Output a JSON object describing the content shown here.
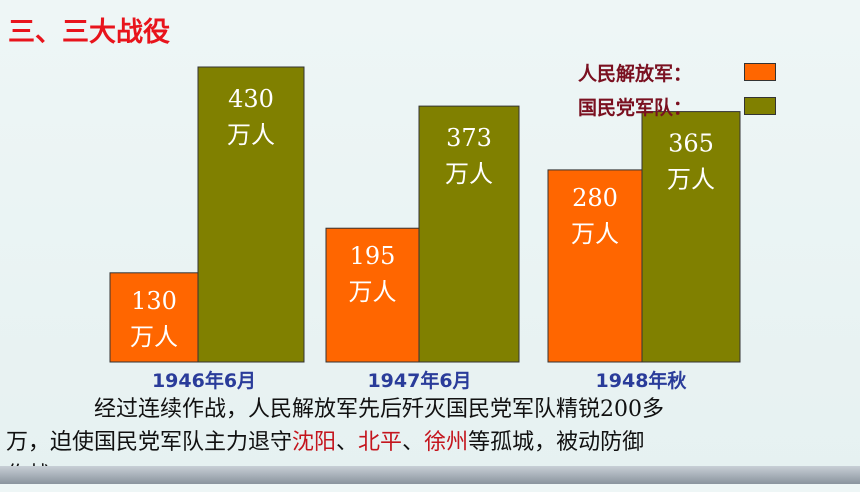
{
  "page": {
    "title": "三、三大战役",
    "paragraph": {
      "line1": "经过连续作战，人民解放军先后歼灭国民党军队精锐200多",
      "line2_a": "万，迫使国民党军队主力退守",
      "city1": "沈阳",
      "sep1": "、",
      "city2": "北平",
      "sep2": "、",
      "city3": "徐州",
      "line2_b": "等孤城，被动防御",
      "line3": "作战。"
    }
  },
  "legend": [
    {
      "label": "人民解放军：",
      "color": "#ff6600"
    },
    {
      "label": "国民党军队：",
      "color": "#808000"
    }
  ],
  "chart_data": {
    "type": "bar",
    "categories": [
      "1946年6月",
      "1947年6月",
      "1948年秋"
    ],
    "series": [
      {
        "name": "人民解放军",
        "values": [
          130,
          195,
          280
        ],
        "color": "#ff6600"
      },
      {
        "name": "国民党军队",
        "values": [
          430,
          373,
          365
        ],
        "color": "#808000"
      }
    ],
    "unit_label": "万人",
    "category_label_color": "#2a3c9a",
    "title": "",
    "xlabel": "",
    "ylabel": "",
    "ylim": [
      0,
      430
    ],
    "grid": false,
    "legend_position": "top-right"
  }
}
